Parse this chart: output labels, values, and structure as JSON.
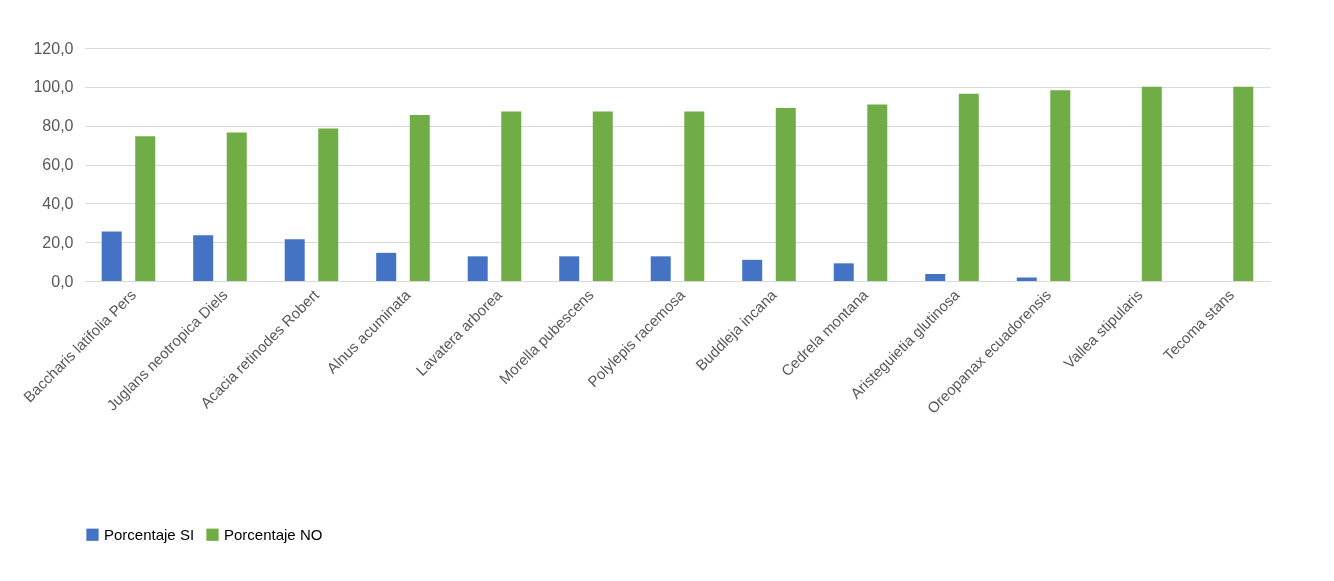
{
  "chart_data": {
    "type": "bar",
    "categories": [
      "Baccharis latifolia Pers",
      "Juglans neotropica Diels",
      "Acacia retinodes Robert",
      "Alnus acuminata",
      "Lavatera arborea",
      "Morella pubescens",
      "Polylepis racemosa",
      "Buddleja incana",
      "Cedrela montana",
      "Aristeguietia glutinosa",
      "Oreopanax ecuadorensis",
      "Vallea stipularis",
      "Tecoma stans"
    ],
    "series": [
      {
        "name": "Porcentaje SI",
        "color": "#4472c4",
        "values": [
          25.5,
          23.5,
          21.5,
          14.5,
          12.7,
          12.7,
          12.7,
          10.9,
          9.1,
          3.6,
          1.8,
          0,
          0
        ]
      },
      {
        "name": "Porcentaje NO",
        "color": "#70ad47",
        "values": [
          74.5,
          76.5,
          78.5,
          85.5,
          87.3,
          87.3,
          87.3,
          89.1,
          90.9,
          96.4,
          98.2,
          100,
          100
        ]
      }
    ],
    "ylim": [
      0,
      120
    ],
    "yticks": [
      {
        "value": 0,
        "label": "0,0"
      },
      {
        "value": 20,
        "label": "20,0"
      },
      {
        "value": 40,
        "label": "40,0"
      },
      {
        "value": 60,
        "label": "60,0"
      },
      {
        "value": 80,
        "label": "80,0"
      },
      {
        "value": 100,
        "label": "100,0"
      },
      {
        "value": 120,
        "label": "120,0"
      }
    ],
    "grid": "y",
    "legend": "bottom"
  }
}
